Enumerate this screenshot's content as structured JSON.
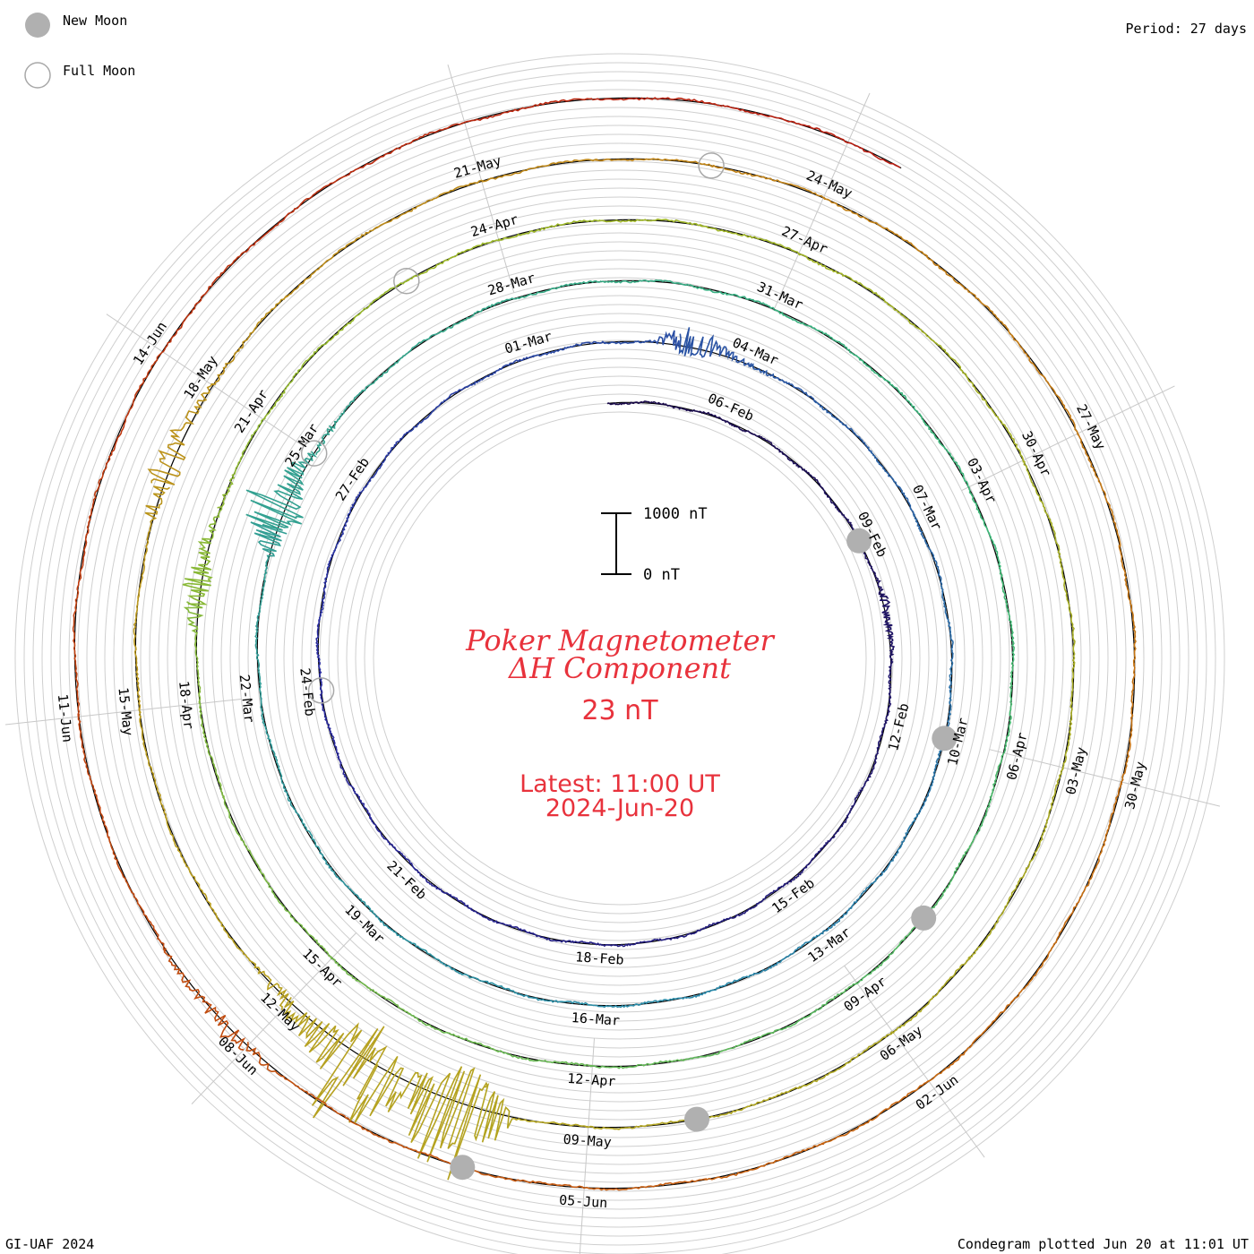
{
  "legend": {
    "new_moon_label": "New Moon",
    "full_moon_label": "Full Moon"
  },
  "period_label": "Period: 27 days",
  "footer_left": "GI-UAF 2024",
  "footer_right": "Condegram plotted Jun 20 at 11:01 UT",
  "chart_data": {
    "type": "line",
    "subtype": "spiral condegram",
    "title": "Poker Magnetometer",
    "subtitle": "ΔH Component",
    "current_value": "23 nT",
    "latest_label": "Latest: 11:00 UT",
    "latest_date": "2024-Jun-20",
    "scale_bar": {
      "top_label": "1000 nT",
      "bottom_label": "0 nT",
      "value_nT": 1000
    },
    "period_days": 27,
    "start_date": "2024-02-04",
    "end_date": "2024-06-20",
    "date_labels": [
      "06-Feb",
      "09-Feb",
      "12-Feb",
      "15-Feb",
      "18-Feb",
      "21-Feb",
      "24-Feb",
      "27-Feb",
      "01-Mar",
      "04-Mar",
      "07-Mar",
      "10-Mar",
      "13-Mar",
      "16-Mar",
      "19-Mar",
      "22-Mar",
      "25-Mar",
      "28-Mar",
      "31-Mar",
      "03-Apr",
      "06-Apr",
      "09-Apr",
      "12-Apr",
      "15-Apr",
      "18-Apr",
      "21-Apr",
      "24-Apr",
      "27-Apr",
      "30-Apr",
      "03-May",
      "06-May",
      "09-May",
      "12-May",
      "15-May",
      "18-May",
      "21-May",
      "24-May",
      "27-May",
      "30-May",
      "02-Jun",
      "05-Jun",
      "08-Jun",
      "11-Jun",
      "14-Jun"
    ],
    "series": [
      {
        "name": "",
        "color": "#000000"
      }
    ],
    "disturbances": [
      {
        "date": "2024-02-10",
        "dH": -150
      },
      {
        "date": "2024-03-03",
        "dH": -450
      },
      {
        "date": "2024-03-24",
        "dH": -900
      },
      {
        "date": "2024-04-19",
        "dH": -400
      },
      {
        "date": "2024-05-10",
        "dH": -1800
      },
      {
        "date": "2024-05-11",
        "dH": -1500
      },
      {
        "date": "2024-05-17",
        "dH": -500
      },
      {
        "date": "2024-06-08",
        "dH": -250
      }
    ],
    "new_moons": [
      "2024-02-09",
      "2024-03-10",
      "2024-04-08",
      "2024-05-08",
      "2024-06-06"
    ],
    "full_moons": [
      "2024-02-24",
      "2024-03-25",
      "2024-04-23",
      "2024-05-23"
    ]
  }
}
